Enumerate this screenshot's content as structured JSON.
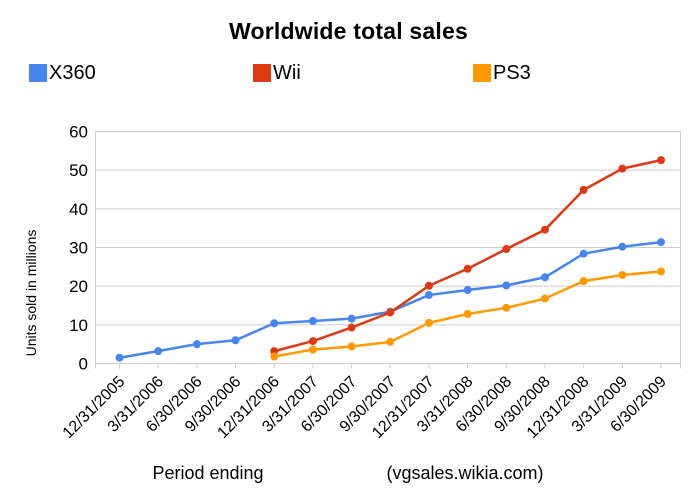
{
  "title": "Worldwide total sales",
  "colors": {
    "grid": "#cccccc",
    "axis": "#cccccc",
    "text": "#000000",
    "background": "#ffffff"
  },
  "axes": {
    "y_title": "Units sold in millions",
    "x_title": "Period ending",
    "source_note": "(vgsales.wikia.com)"
  },
  "chart_data": {
    "type": "line",
    "title": "Worldwide total sales",
    "xlabel": "Period ending",
    "ylabel": "Units sold in millions",
    "source": "(vgsales.wikia.com)",
    "ylim": [
      0,
      60
    ],
    "yticks": [
      0,
      10,
      20,
      30,
      40,
      50,
      60
    ],
    "grid": true,
    "legend_position": "top",
    "categories": [
      "12/31/2005",
      "3/31/2006",
      "6/30/2006",
      "9/30/2006",
      "12/31/2006",
      "3/31/2007",
      "6/30/2007",
      "9/30/2007",
      "12/31/2007",
      "3/31/2008",
      "6/30/2008",
      "9/30/2008",
      "12/31/2008",
      "3/31/2009",
      "6/30/2009"
    ],
    "series": [
      {
        "name": "X360",
        "color": "#4684EE",
        "values": [
          1.5,
          3.2,
          5.0,
          6.0,
          10.4,
          11.0,
          11.6,
          13.4,
          17.7,
          19.0,
          20.2,
          22.3,
          28.4,
          30.2,
          31.4
        ]
      },
      {
        "name": "Wii",
        "color": "#DC3912",
        "values": [
          null,
          null,
          null,
          null,
          3.2,
          5.8,
          9.3,
          13.2,
          20.1,
          24.5,
          29.6,
          34.6,
          44.9,
          50.4,
          52.6
        ]
      },
      {
        "name": "PS3",
        "color": "#FF9900",
        "values": [
          null,
          null,
          null,
          null,
          1.8,
          3.6,
          4.4,
          5.6,
          10.5,
          12.8,
          14.4,
          16.8,
          21.3,
          22.9,
          23.8
        ]
      }
    ]
  }
}
